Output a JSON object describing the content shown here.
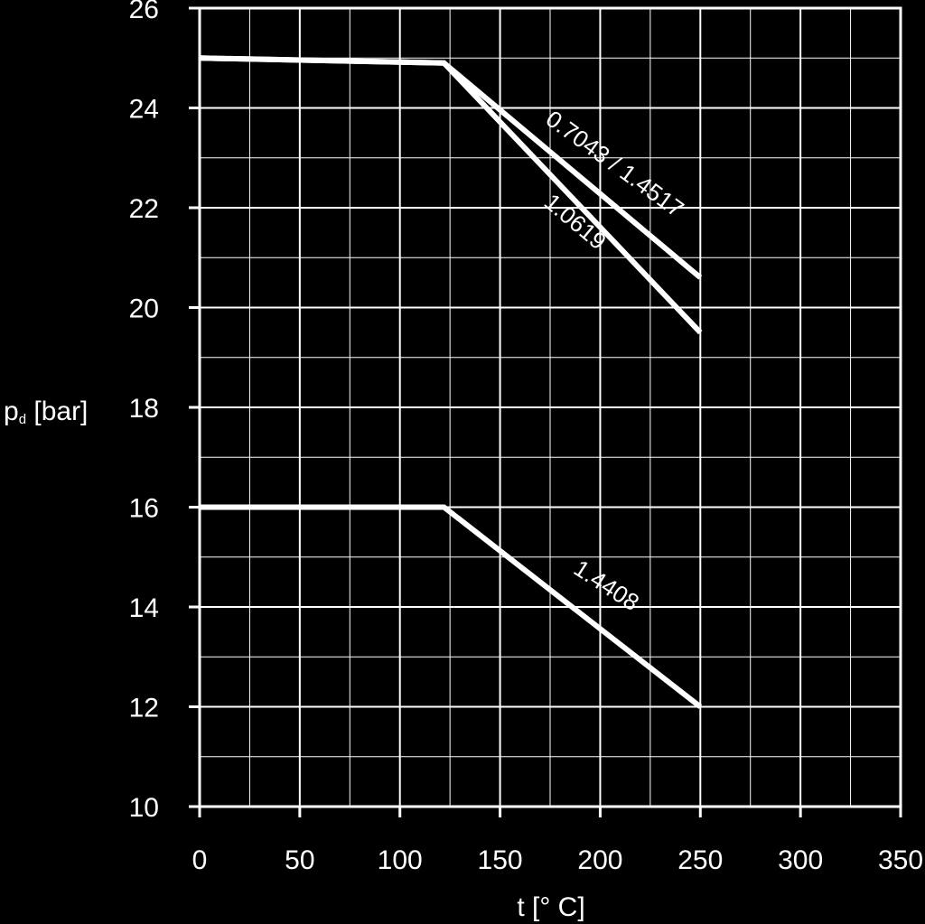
{
  "chart_data": {
    "type": "line",
    "xlabel": "t [° C]",
    "ylabel_main": "p",
    "ylabel_sub": "d",
    "ylabel_unit": " [bar]",
    "xlim": [
      0,
      350
    ],
    "ylim": [
      10,
      26
    ],
    "x_ticks": [
      0,
      50,
      100,
      150,
      200,
      250,
      300,
      350
    ],
    "y_ticks": [
      10,
      12,
      14,
      16,
      18,
      20,
      22,
      24,
      26
    ],
    "x_tick_labels": [
      "0",
      "50",
      "100",
      "150",
      "200",
      "250",
      "300",
      "350"
    ],
    "y_tick_labels": [
      "10",
      "12",
      "14",
      "16",
      "18",
      "20",
      "22",
      "24",
      "26"
    ],
    "x_minor_step": 25,
    "y_minor_step": 1,
    "grid": true,
    "colors": {
      "background": "#000000",
      "foreground": "#ffffff"
    },
    "series": [
      {
        "name": "0.7043 / 1.4517",
        "points": [
          [
            0,
            25
          ],
          [
            122,
            24.9
          ],
          [
            250,
            20.6
          ]
        ],
        "label_at": [
          205,
          22.75
        ],
        "label_angle_deg": 36
      },
      {
        "name": "1.0619",
        "points": [
          [
            0,
            25
          ],
          [
            122,
            24.9
          ],
          [
            250,
            19.5
          ]
        ],
        "label_at": [
          185,
          21.6
        ],
        "label_angle_deg": 40
      },
      {
        "name": "1.4408",
        "points": [
          [
            0,
            16
          ],
          [
            122,
            16
          ],
          [
            250,
            12
          ]
        ],
        "label_at": [
          201,
          14.3
        ],
        "label_angle_deg": 33
      }
    ]
  }
}
